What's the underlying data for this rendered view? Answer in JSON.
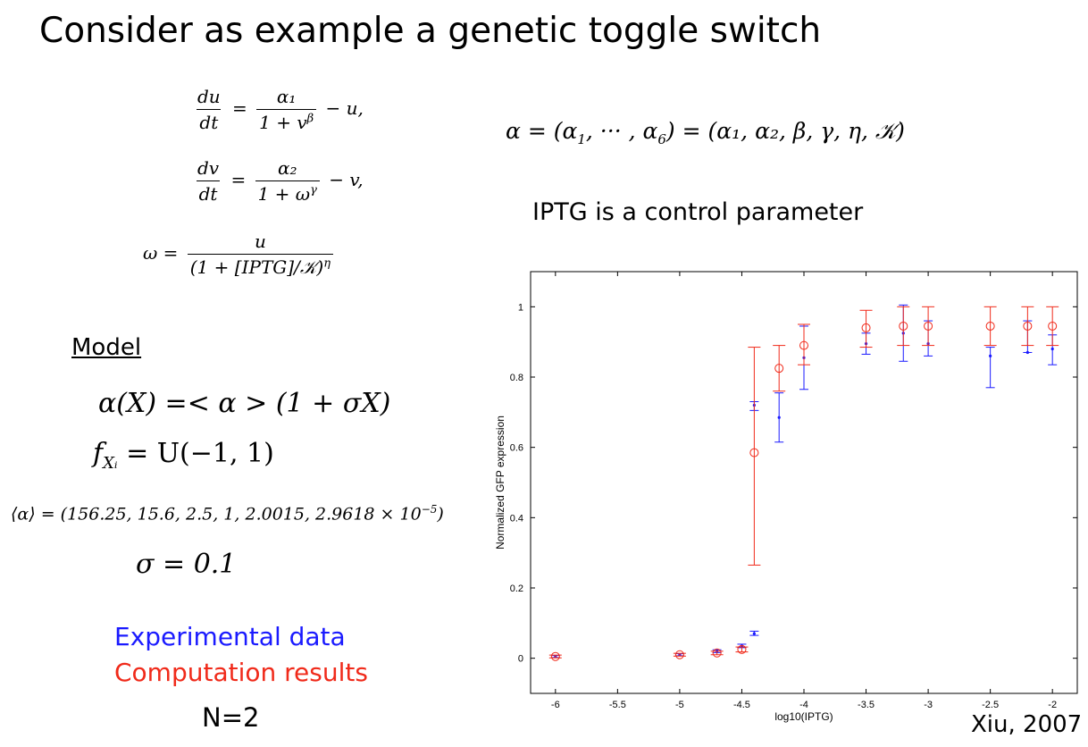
{
  "title": "Consider as example a genetic toggle switch",
  "equations": {
    "du_lhs_num": "du",
    "du_lhs_den": "dt",
    "du_rhs_num": "α₁",
    "du_rhs_den": "1 + v",
    "du_rhs_den_exp": "β",
    "du_tail": "− u,",
    "dv_lhs_num": "dv",
    "dv_lhs_den": "dt",
    "dv_rhs_num": "α₂",
    "dv_rhs_den": "1 + ω",
    "dv_rhs_den_exp": "γ",
    "dv_tail": "− v,",
    "omega_lhs": "ω =",
    "omega_num": "u",
    "omega_den": "(1 + [IPTG]/𝒦)",
    "omega_den_exp": "η"
  },
  "parameters": {
    "lhs": "α = (α",
    "sub1": "1",
    "mid": ", ··· , α",
    "sub6": "6",
    "rhs": ") = (α₁, α₂, β, γ, η, 𝒦)"
  },
  "control_text": "IPTG is a control parameter",
  "model": {
    "heading": "Model",
    "eq1": "α(X) =< α > (1 + σX)",
    "eq2_lhs": "f",
    "eq2_sub": "Xᵢ",
    "eq2_rhs": "= U(−1, 1)",
    "eq3_pre": "⟨α⟩ = (156.25, 15.6, 2.5, 1, 2.0015, 2.9618 × 10",
    "eq3_exp": "−5",
    "eq3_post": ")",
    "eq4": "σ = 0.1"
  },
  "legend": {
    "experimental": "Experimental data",
    "computation": "Computation results"
  },
  "n_label": "N=2",
  "citation": "Xiu, 2007",
  "colors": {
    "experimental": "#1a1aff",
    "computation": "#f02a1a"
  },
  "chart_data": {
    "type": "scatter",
    "xlabel": "log10(IPTG)",
    "ylabel": "Normalized GFP expression",
    "xlim": [
      -6.2,
      -1.8
    ],
    "ylim": [
      -0.1,
      1.1
    ],
    "xticks": [
      "-6",
      "-5.5",
      "-5",
      "-4.5",
      "-4",
      "-3.5",
      "-3",
      "-2.5",
      "-2"
    ],
    "xtick_values": [
      -6,
      -5.5,
      -5,
      -4.5,
      -4,
      -3.5,
      -3,
      -2.5,
      -2
    ],
    "yticks": [
      "0",
      "0.2",
      "0.4",
      "0.6",
      "0.8",
      "1"
    ],
    "ytick_values": [
      0,
      0.2,
      0.4,
      0.6,
      0.8,
      1
    ],
    "grid": false,
    "series": [
      {
        "points": [
          {
            "x": -6,
            "y": 0.005,
            "lo": 0.002,
            "hi": 0.008
          },
          {
            "x": -5,
            "y": 0.01,
            "lo": 0.007,
            "hi": 0.013
          },
          {
            "x": -4.7,
            "y": 0.02,
            "lo": 0.016,
            "hi": 0.024
          },
          {
            "x": -4.5,
            "y": 0.035,
            "lo": 0.03,
            "hi": 0.04
          },
          {
            "x": -4.4,
            "y": 0.07,
            "lo": 0.065,
            "hi": 0.077
          },
          {
            "x": -4.4,
            "y": 0.72,
            "lo": 0.705,
            "hi": 0.73
          },
          {
            "x": -4.2,
            "y": 0.685,
            "lo": 0.615,
            "hi": 0.755
          },
          {
            "x": -4,
            "y": 0.855,
            "lo": 0.765,
            "hi": 0.945
          },
          {
            "x": -3.5,
            "y": 0.895,
            "lo": 0.865,
            "hi": 0.925
          },
          {
            "x": -3.2,
            "y": 0.925,
            "lo": 0.845,
            "hi": 1.005
          },
          {
            "x": -3,
            "y": 0.895,
            "lo": 0.86,
            "hi": 0.96
          },
          {
            "x": -2.5,
            "y": 0.86,
            "lo": 0.77,
            "hi": 0.885
          },
          {
            "x": -2.2,
            "y": 0.87,
            "lo": 0.87,
            "hi": 0.96
          },
          {
            "x": -2,
            "y": 0.88,
            "lo": 0.835,
            "hi": 0.92
          }
        ]
      },
      {
        "points": [
          {
            "x": -6,
            "y": 0.005,
            "lo": 0.001,
            "hi": 0.009
          },
          {
            "x": -5,
            "y": 0.01,
            "lo": 0.006,
            "hi": 0.014
          },
          {
            "x": -4.7,
            "y": 0.015,
            "lo": 0.01,
            "hi": 0.02
          },
          {
            "x": -4.5,
            "y": 0.025,
            "lo": 0.018,
            "hi": 0.032
          },
          {
            "x": -4.4,
            "y": 0.585,
            "lo": 0.265,
            "hi": 0.885
          },
          {
            "x": -4.2,
            "y": 0.825,
            "lo": 0.76,
            "hi": 0.89
          },
          {
            "x": -4,
            "y": 0.89,
            "lo": 0.835,
            "hi": 0.95
          },
          {
            "x": -3.5,
            "y": 0.94,
            "lo": 0.885,
            "hi": 0.99
          },
          {
            "x": -3.2,
            "y": 0.945,
            "lo": 0.89,
            "hi": 1.0
          },
          {
            "x": -3,
            "y": 0.945,
            "lo": 0.89,
            "hi": 1.0
          },
          {
            "x": -2.5,
            "y": 0.945,
            "lo": 0.89,
            "hi": 1.0
          },
          {
            "x": -2.2,
            "y": 0.945,
            "lo": 0.89,
            "hi": 1.0
          },
          {
            "x": -2,
            "y": 0.945,
            "lo": 0.89,
            "hi": 1.0
          }
        ]
      }
    ]
  }
}
